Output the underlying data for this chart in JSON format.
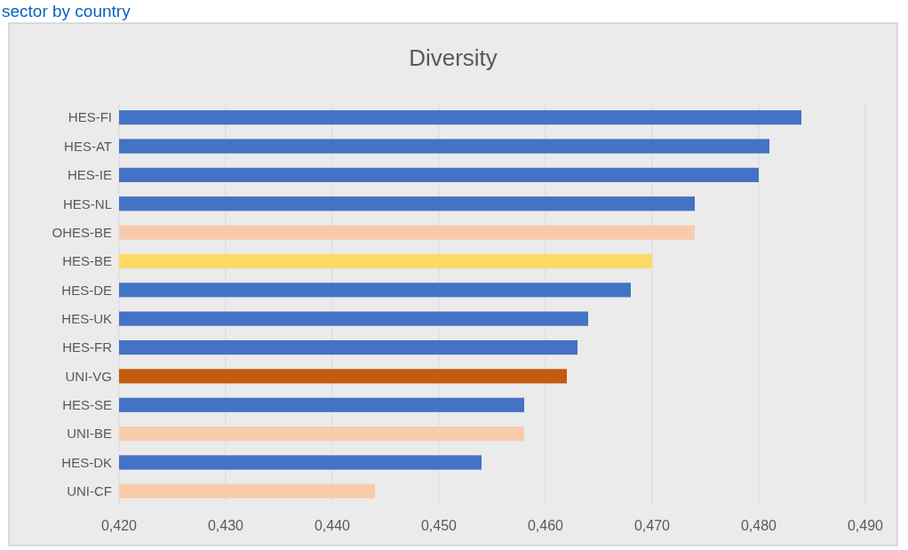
{
  "chart_data": {
    "type": "bar",
    "orientation": "horizontal",
    "title": "Diversity",
    "annotations": [
      "sector by country"
    ],
    "categories": [
      "HES-FI",
      "HES-AT",
      "HES-IE",
      "HES-NL",
      "OHES-BE",
      "HES-BE",
      "HES-DE",
      "HES-UK",
      "HES-FR",
      "UNI-VG",
      "HES-SE",
      "UNI-BE",
      "HES-DK",
      "UNI-CF"
    ],
    "values": [
      0.484,
      0.481,
      0.48,
      0.474,
      0.474,
      0.47,
      0.468,
      0.464,
      0.463,
      0.462,
      0.458,
      0.458,
      0.454,
      0.444
    ],
    "colors": [
      "#4472c4",
      "#4472c4",
      "#4472c4",
      "#4472c4",
      "#f8cbad",
      "#ffd966",
      "#4472c4",
      "#4472c4",
      "#4472c4",
      "#c55a11",
      "#4472c4",
      "#f8cbad",
      "#4472c4",
      "#f8cbad"
    ],
    "xlim": [
      0.42,
      0.49
    ],
    "xticks": [
      {
        "value": 0.42,
        "label": "0,420"
      },
      {
        "value": 0.43,
        "label": "0,430"
      },
      {
        "value": 0.44,
        "label": "0,440"
      },
      {
        "value": 0.45,
        "label": "0,450"
      },
      {
        "value": 0.46,
        "label": "0,460"
      },
      {
        "value": 0.47,
        "label": "0,470"
      },
      {
        "value": 0.48,
        "label": "0,480"
      },
      {
        "value": 0.49,
        "label": "0,490"
      }
    ],
    "grid": "x"
  }
}
